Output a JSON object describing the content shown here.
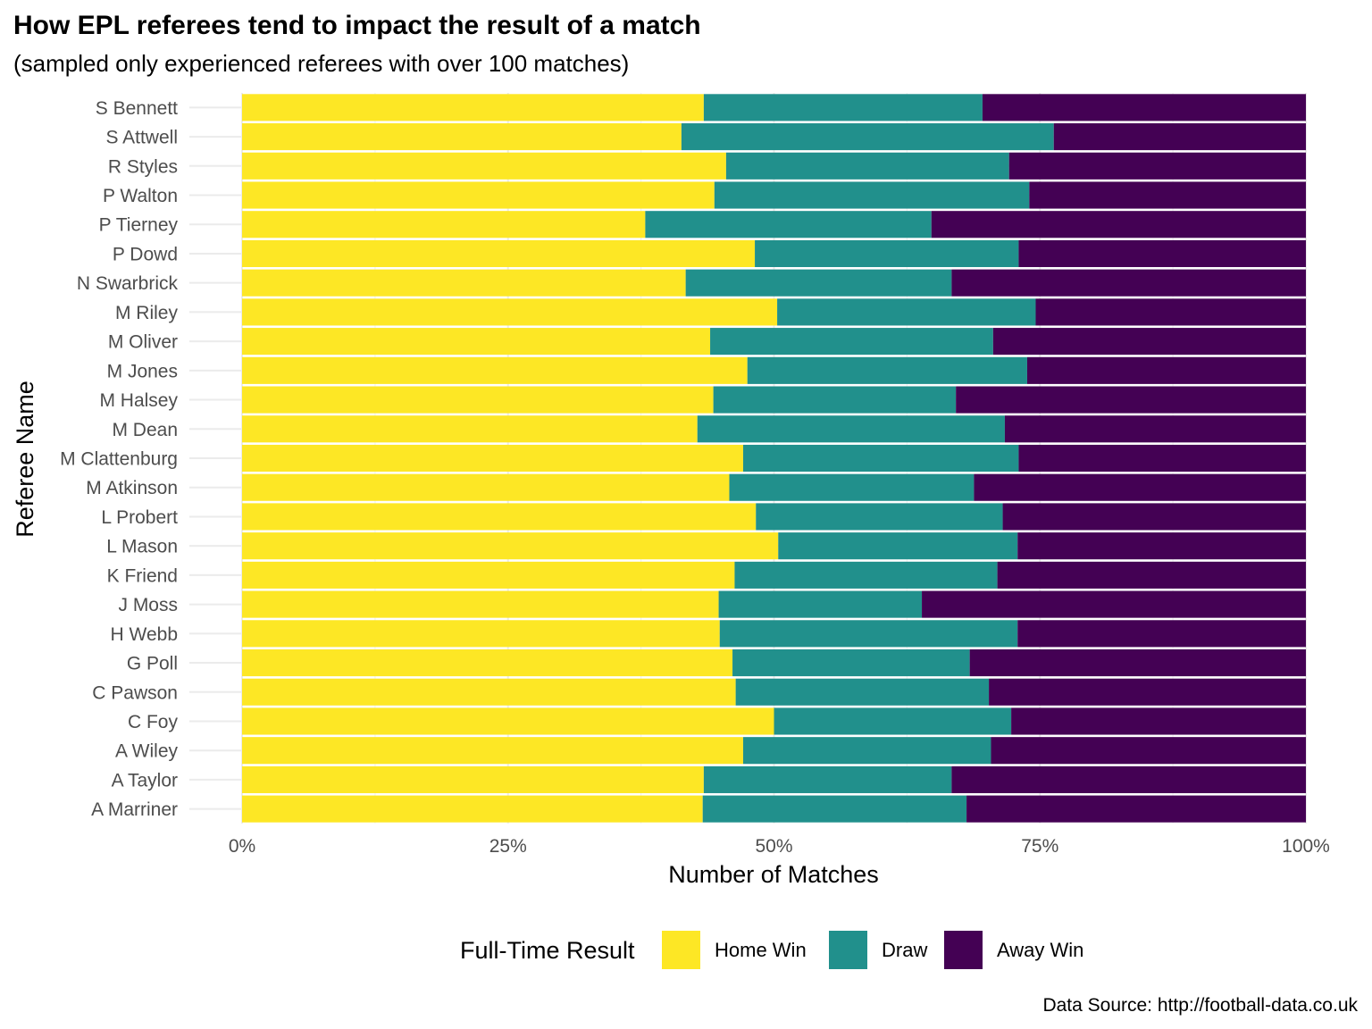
{
  "chart_data": {
    "type": "bar",
    "orientation": "horizontal",
    "stacked": "percent",
    "title": "How EPL referees tend to impact the result of a match",
    "subtitle": "(sampled only experienced referees with over 100 matches)",
    "xlabel": "Number of Matches",
    "ylabel": "Referee Name",
    "xlim": [
      0,
      1
    ],
    "xticks": [
      "0%",
      "25%",
      "50%",
      "75%",
      "100%"
    ],
    "caption": "Data Source: http://football-data.co.uk",
    "legend": {
      "title": "Full-Time Result",
      "position": "bottom"
    },
    "grid": true,
    "categories": [
      "S Bennett",
      "S Attwell",
      "R Styles",
      "P Walton",
      "P Tierney",
      "P Dowd",
      "N Swarbrick",
      "M Riley",
      "M Oliver",
      "M Jones",
      "M Halsey",
      "M Dean",
      "M Clattenburg",
      "M Atkinson",
      "L Probert",
      "L Mason",
      "K Friend",
      "J Moss",
      "H Webb",
      "G Poll",
      "C Pawson",
      "C Foy",
      "A Wiley",
      "A Taylor",
      "A Marriner"
    ],
    "series": [
      {
        "name": "Home Win",
        "color": "#fde725",
        "values": [
          0.434,
          0.413,
          0.455,
          0.444,
          0.379,
          0.482,
          0.417,
          0.503,
          0.44,
          0.475,
          0.443,
          0.428,
          0.471,
          0.458,
          0.483,
          0.504,
          0.463,
          0.448,
          0.449,
          0.461,
          0.464,
          0.5,
          0.471,
          0.434,
          0.433
        ]
      },
      {
        "name": "Draw",
        "color": "#21908c",
        "values": [
          0.262,
          0.35,
          0.266,
          0.296,
          0.269,
          0.248,
          0.25,
          0.243,
          0.266,
          0.263,
          0.228,
          0.289,
          0.259,
          0.23,
          0.232,
          0.225,
          0.247,
          0.191,
          0.28,
          0.223,
          0.238,
          0.223,
          0.233,
          0.233,
          0.248
        ]
      },
      {
        "name": "Away Win",
        "color": "#440154",
        "values": [
          0.304,
          0.237,
          0.279,
          0.26,
          0.352,
          0.27,
          0.333,
          0.254,
          0.294,
          0.262,
          0.329,
          0.283,
          0.27,
          0.312,
          0.285,
          0.271,
          0.29,
          0.361,
          0.271,
          0.316,
          0.298,
          0.277,
          0.296,
          0.333,
          0.319
        ]
      }
    ]
  }
}
